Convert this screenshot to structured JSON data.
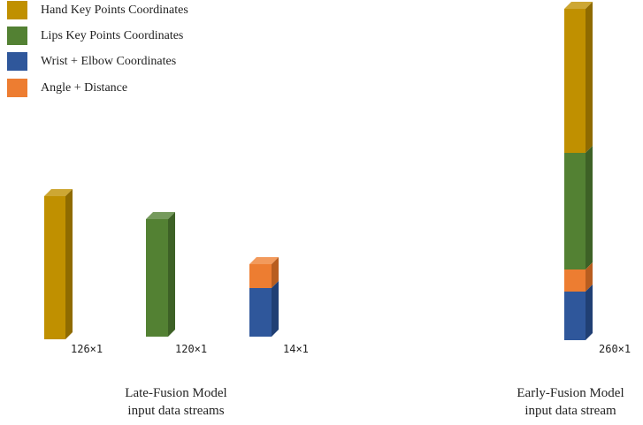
{
  "legend": [
    {
      "label": "Hand Key Points Coordinates",
      "color": "#c09000"
    },
    {
      "label": "Lips Key Points Coordinates",
      "color": "#538133"
    },
    {
      "label": "Wrist + Elbow Coordinates",
      "color": "#2f579b"
    },
    {
      "label": "Angle + Distance",
      "color": "#ed7d31"
    }
  ],
  "late_fusion": {
    "dims": [
      "126×1",
      "120×1",
      "14×1"
    ],
    "caption_line1": "Late-Fusion Model",
    "caption_line2": "input data streams"
  },
  "early_fusion": {
    "dim": "260×1",
    "caption_line1": "Early-Fusion Model",
    "caption_line2": "input data stream"
  }
}
